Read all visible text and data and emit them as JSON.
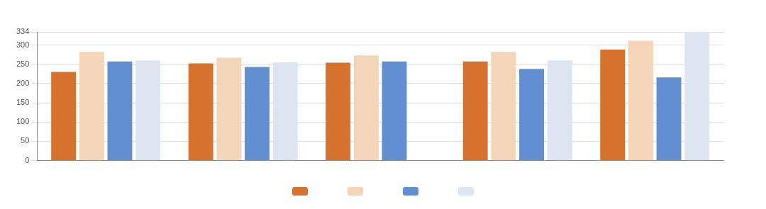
{
  "chart_data": {
    "type": "bar",
    "categories": [
      null,
      null,
      null,
      null,
      null
    ],
    "series": [
      {
        "color": "#d6712e",
        "values": [
          230,
          252,
          254,
          257,
          288
        ]
      },
      {
        "color": "#f5d5b7",
        "values": [
          282,
          267,
          273,
          282,
          311
        ]
      },
      {
        "color": "#628fd1",
        "values": [
          257,
          243,
          257,
          238,
          216
        ]
      },
      {
        "color": "#dde5f0",
        "values": [
          260,
          255,
          null,
          260,
          334
        ]
      }
    ],
    "ylim": [
      0,
      334
    ],
    "yticks": [
      0,
      50,
      100,
      150,
      200,
      250,
      300,
      334
    ],
    "grid": "y"
  }
}
